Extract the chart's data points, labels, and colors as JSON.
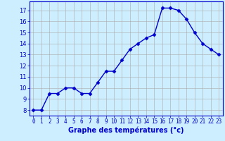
{
  "hours": [
    0,
    1,
    2,
    3,
    4,
    5,
    6,
    7,
    8,
    9,
    10,
    11,
    12,
    13,
    14,
    15,
    16,
    17,
    18,
    19,
    20,
    21,
    22,
    23
  ],
  "temperatures": [
    8.0,
    8.0,
    9.5,
    9.5,
    10.0,
    10.0,
    9.5,
    9.5,
    10.5,
    11.5,
    11.5,
    12.5,
    13.5,
    14.0,
    14.5,
    14.8,
    17.2,
    17.2,
    17.0,
    16.2,
    15.0,
    14.0,
    13.5,
    13.0
  ],
  "line_color": "#0000cc",
  "marker": "D",
  "marker_size": 2.5,
  "bg_color": "#cceeff",
  "grid_color": "#aaaaaa",
  "xlabel": "Graphe des températures (°c)",
  "xlabel_color": "#0000cc",
  "xlabel_fontsize": 7,
  "tick_color": "#0000cc",
  "ylim": [
    7.5,
    17.8
  ],
  "yticks": [
    8,
    9,
    10,
    11,
    12,
    13,
    14,
    15,
    16,
    17
  ],
  "xticks": [
    0,
    1,
    2,
    3,
    4,
    5,
    6,
    7,
    8,
    9,
    10,
    11,
    12,
    13,
    14,
    15,
    16,
    17,
    18,
    19,
    20,
    21,
    22,
    23
  ],
  "spine_color": "#0000cc",
  "line_width": 1.0
}
